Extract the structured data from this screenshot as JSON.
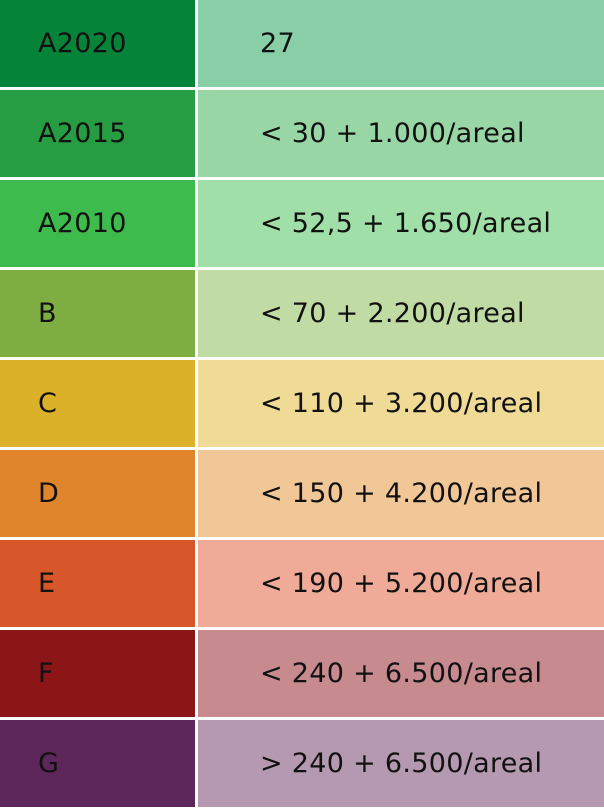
{
  "energy_classes": [
    {
      "label": "A2020",
      "value": "27",
      "class_color": "#048339",
      "value_color": "#88cea7"
    },
    {
      "label": "A2015",
      "value": "< 30 + 1.000/areal",
      "class_color": "#279d43",
      "value_color": "#99d6a5"
    },
    {
      "label": "A2010",
      "value": "< 52,5 + 1.650/areal",
      "class_color": "#3dbb4d",
      "value_color": "#a0e0a8"
    },
    {
      "label": "B",
      "value": "< 70 + 2.200/areal",
      "class_color": "#7ead41",
      "value_color": "#c1dba5"
    },
    {
      "label": "C",
      "value": "< 110 + 3.200/areal",
      "class_color": "#dbb12a",
      "value_color": "#f0db96"
    },
    {
      "label": "D",
      "value": "< 150 + 4.200/areal",
      "class_color": "#e0852b",
      "value_color": "#f2c797"
    },
    {
      "label": "E",
      "value": "< 190 + 5.200/areal",
      "class_color": "#d7562a",
      "value_color": "#efab97"
    },
    {
      "label": "F",
      "value": "< 240 + 6.500/areal",
      "class_color": "#8c1518",
      "value_color": "#c68a8f"
    },
    {
      "label": "G",
      "value": "> 240 + 6.500/areal",
      "class_color": "#5e275b",
      "value_color": "#b499b1"
    }
  ]
}
